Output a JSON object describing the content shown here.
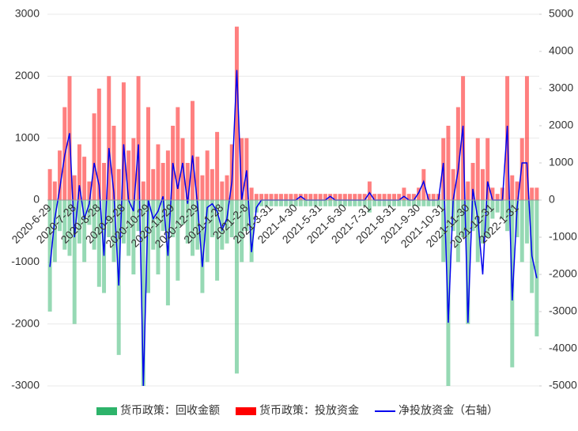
{
  "chart_data": {
    "type": "bar-line",
    "categories": [
      "2020-6-29",
      null,
      null,
      null,
      null,
      "2020-7-28",
      null,
      null,
      null,
      null,
      "2020-8-28",
      null,
      null,
      null,
      null,
      "2020-9-28",
      null,
      null,
      null,
      null,
      "2020-10-29",
      null,
      null,
      null,
      null,
      "2020-11-29",
      null,
      null,
      null,
      null,
      "2020-12-29",
      null,
      null,
      null,
      null,
      "2021-1-28",
      null,
      null,
      null,
      null,
      "2021-2-8",
      null,
      null,
      null,
      null,
      "2021-3-31",
      null,
      null,
      null,
      null,
      "2021-4-30",
      null,
      null,
      null,
      null,
      "2021-5-31",
      null,
      null,
      null,
      null,
      "2021-6-30",
      null,
      null,
      null,
      null,
      "2021-7-31",
      null,
      null,
      null,
      null,
      "2021-8-31",
      null,
      null,
      null,
      null,
      "2021-9-30",
      null,
      null,
      null,
      null,
      "2021-10-31",
      null,
      null,
      null,
      null,
      "2021-11-30",
      null,
      null,
      null,
      null,
      "2021-12-31",
      null,
      null,
      null,
      null,
      "2022-1-31",
      null,
      null,
      null,
      null
    ],
    "series": [
      {
        "name": "货币政策：回收金额",
        "color": "#2db36a",
        "axis": "y",
        "values": [
          -1800,
          -1000,
          -500,
          -800,
          -900,
          -2000,
          -700,
          -1000,
          -400,
          -800,
          -1400,
          -1500,
          -600,
          -1000,
          -2500,
          -700,
          -900,
          -1200,
          -500,
          -3000,
          -1500,
          -800,
          -1200,
          -500,
          -1700,
          -600,
          -1300,
          -400,
          -700,
          -900,
          -800,
          -1500,
          -1000,
          -600,
          -1300,
          -800,
          -700,
          -600,
          -2800,
          -1000,
          -500,
          -1000,
          -200,
          -100,
          -100,
          -100,
          -100,
          -100,
          -100,
          -100,
          -100,
          -100,
          -100,
          -100,
          -100,
          -100,
          -100,
          -100,
          -100,
          -100,
          -100,
          -100,
          -100,
          -100,
          -100,
          -200,
          -100,
          -100,
          -100,
          -100,
          -100,
          -100,
          -100,
          -100,
          -100,
          -100,
          -100,
          -100,
          -100,
          -100,
          -1000,
          -3000,
          -500,
          -1000,
          -600,
          -2000,
          -500,
          -1000,
          -700,
          -600,
          -300,
          -200,
          -300,
          -500,
          -2700,
          -600,
          -1000,
          -700,
          -1500,
          -2200
        ]
      },
      {
        "name": "货币政策：投放资金",
        "color": "#ff0000",
        "axis": "y",
        "values": [
          500,
          300,
          800,
          1500,
          2000,
          400,
          900,
          700,
          300,
          1400,
          1800,
          600,
          2000,
          1200,
          500,
          1900,
          800,
          1000,
          2000,
          300,
          1500,
          500,
          900,
          600,
          800,
          1200,
          1500,
          1000,
          600,
          1600,
          700,
          400,
          800,
          500,
          1100,
          300,
          400,
          900,
          2800,
          1000,
          1000,
          200,
          100,
          100,
          100,
          100,
          100,
          100,
          100,
          100,
          100,
          100,
          100,
          100,
          100,
          100,
          100,
          100,
          100,
          100,
          100,
          100,
          100,
          100,
          100,
          300,
          100,
          100,
          100,
          100,
          100,
          100,
          200,
          100,
          100,
          200,
          500,
          100,
          100,
          100,
          1000,
          1200,
          500,
          1500,
          2000,
          300,
          600,
          1000,
          500,
          1000,
          200,
          100,
          200,
          2000,
          400,
          300,
          1000,
          2000,
          200,
          200
        ]
      },
      {
        "name": "净投放资金（右轴）",
        "color": "#0000ee",
        "axis": "y2",
        "values": [
          -1800,
          -500,
          300,
          1200,
          1800,
          -1000,
          400,
          -500,
          -100,
          1000,
          400,
          -1500,
          1400,
          200,
          -2300,
          1500,
          0,
          -300,
          1500,
          -5000,
          0,
          -500,
          -300,
          100,
          -1500,
          1000,
          300,
          1000,
          -100,
          1200,
          -100,
          -1800,
          -200,
          -100,
          -300,
          -800,
          -500,
          500,
          3500,
          0,
          800,
          -1400,
          -200,
          0,
          0,
          0,
          0,
          0,
          0,
          0,
          0,
          100,
          0,
          0,
          0,
          0,
          0,
          100,
          0,
          0,
          0,
          0,
          0,
          0,
          0,
          200,
          0,
          0,
          0,
          0,
          0,
          0,
          100,
          0,
          0,
          200,
          500,
          0,
          0,
          0,
          1000,
          -3300,
          0,
          800,
          2000,
          -3300,
          300,
          -500,
          -2000,
          500,
          0,
          0,
          0,
          2000,
          -2700,
          -200,
          1000,
          1000,
          -1500,
          -2100
        ]
      }
    ],
    "ylim": [
      -3000,
      3000
    ],
    "yticks": [
      -3000,
      -2000,
      -1000,
      0,
      1000,
      2000,
      3000
    ],
    "y2lim": [
      -5000,
      5000
    ],
    "y2ticks": [
      -5000,
      -4000,
      -3000,
      -2000,
      -1000,
      0,
      1000,
      2000,
      3000,
      4000,
      5000
    ],
    "grid": true
  }
}
